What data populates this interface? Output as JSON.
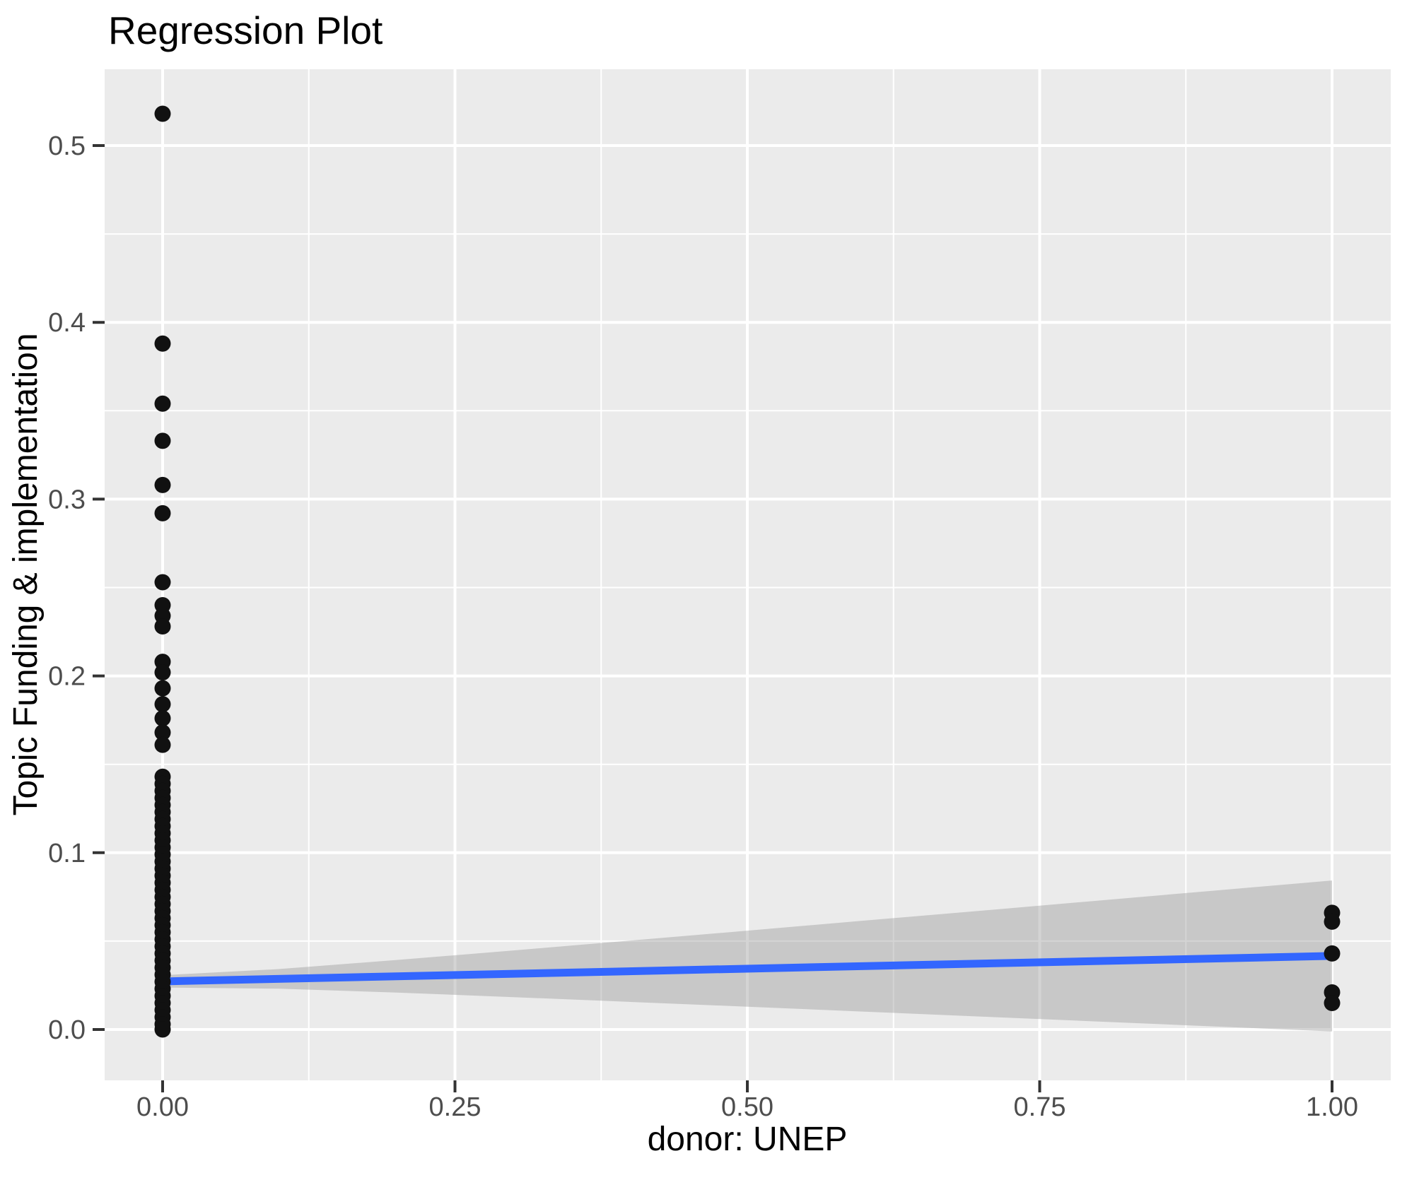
{
  "title": "Regression Plot",
  "chart_data": {
    "type": "scatter",
    "title": "Regression Plot",
    "xlabel": "donor: UNEP",
    "ylabel": "Topic Funding & implementation",
    "legend": "none",
    "grid": "on",
    "x_axis": {
      "range": [
        -0.05,
        1.05
      ],
      "ticks": [
        {
          "value": 0.0,
          "label": "0.00"
        },
        {
          "value": 0.25,
          "label": "0.25"
        },
        {
          "value": 0.5,
          "label": "0.50"
        },
        {
          "value": 0.75,
          "label": "0.75"
        },
        {
          "value": 1.0,
          "label": "1.00"
        }
      ],
      "minor_ticks": [
        0.125,
        0.375,
        0.625,
        0.875
      ]
    },
    "y_axis": {
      "range": [
        -0.029,
        0.543
      ],
      "ticks": [
        {
          "value": 0.0,
          "label": "0.0"
        },
        {
          "value": 0.1,
          "label": "0.1"
        },
        {
          "value": 0.2,
          "label": "0.2"
        },
        {
          "value": 0.3,
          "label": "0.3"
        },
        {
          "value": 0.4,
          "label": "0.4"
        },
        {
          "value": 0.5,
          "label": "0.5"
        }
      ],
      "minor_ticks": [
        0.05,
        0.15,
        0.25,
        0.35,
        0.45
      ]
    },
    "points": [
      [
        0,
        0.518
      ],
      [
        0,
        0.388
      ],
      [
        0,
        0.354
      ],
      [
        0,
        0.333
      ],
      [
        0,
        0.308
      ],
      [
        0,
        0.292
      ],
      [
        0,
        0.253
      ],
      [
        0,
        0.24
      ],
      [
        0,
        0.234
      ],
      [
        0,
        0.228
      ],
      [
        0,
        0.208
      ],
      [
        0,
        0.202
      ],
      [
        0,
        0.193
      ],
      [
        0,
        0.184
      ],
      [
        0,
        0.176
      ],
      [
        0,
        0.168
      ],
      [
        0,
        0.161
      ],
      [
        0,
        0.143
      ],
      [
        0,
        0.139
      ],
      [
        0,
        0.135
      ],
      [
        0,
        0.131
      ],
      [
        0,
        0.127
      ],
      [
        0,
        0.123
      ],
      [
        0,
        0.119
      ],
      [
        0,
        0.115
      ],
      [
        0,
        0.111
      ],
      [
        0,
        0.107
      ],
      [
        0,
        0.103
      ],
      [
        0,
        0.099
      ],
      [
        0,
        0.095
      ],
      [
        0,
        0.091
      ],
      [
        0,
        0.087
      ],
      [
        0,
        0.083
      ],
      [
        0,
        0.079
      ],
      [
        0,
        0.075
      ],
      [
        0,
        0.071
      ],
      [
        0,
        0.067
      ],
      [
        0,
        0.063
      ],
      [
        0,
        0.059
      ],
      [
        0,
        0.055
      ],
      [
        0,
        0.051
      ],
      [
        0,
        0.047
      ],
      [
        0,
        0.043
      ],
      [
        0,
        0.039
      ],
      [
        0,
        0.035
      ],
      [
        0,
        0.031
      ],
      [
        0,
        0.027
      ],
      [
        0,
        0.023
      ],
      [
        0,
        0.019
      ],
      [
        0,
        0.015
      ],
      [
        0,
        0.011
      ],
      [
        0,
        0.007
      ],
      [
        0,
        0.003
      ],
      [
        0,
        0.0
      ],
      [
        1,
        0.066
      ],
      [
        1,
        0.061
      ],
      [
        1,
        0.043
      ],
      [
        1,
        0.021
      ],
      [
        1,
        0.015
      ]
    ],
    "regression_line": {
      "x0": 0,
      "y0": 0.0272,
      "x1": 1,
      "y1": 0.0416
    },
    "confidence_band": [
      {
        "x": 0.0,
        "lower": 0.0237,
        "upper": 0.0307
      },
      {
        "x": 0.1,
        "lower": 0.0231,
        "upper": 0.0342
      },
      {
        "x": 0.2,
        "lower": 0.0209,
        "upper": 0.0393
      },
      {
        "x": 0.3,
        "lower": 0.0183,
        "upper": 0.0447
      },
      {
        "x": 0.4,
        "lower": 0.0156,
        "upper": 0.0503
      },
      {
        "x": 0.5,
        "lower": 0.0129,
        "upper": 0.0559
      },
      {
        "x": 0.6,
        "lower": 0.0101,
        "upper": 0.0616
      },
      {
        "x": 0.7,
        "lower": 0.0073,
        "upper": 0.0672
      },
      {
        "x": 0.8,
        "lower": 0.0045,
        "upper": 0.0729
      },
      {
        "x": 0.9,
        "lower": 0.0017,
        "upper": 0.0786
      },
      {
        "x": 1.0,
        "lower": -0.0011,
        "upper": 0.0843
      }
    ],
    "colors": {
      "panel_bg": "#EBEBEB",
      "grid": "#FFFFFF",
      "point": "#111111",
      "regression_line": "#3366FF",
      "band": "#999999",
      "band_opacity": 0.42,
      "tick_mark": "#333333",
      "tick_label": "#4D4D4D",
      "title_text": "#000000"
    }
  }
}
